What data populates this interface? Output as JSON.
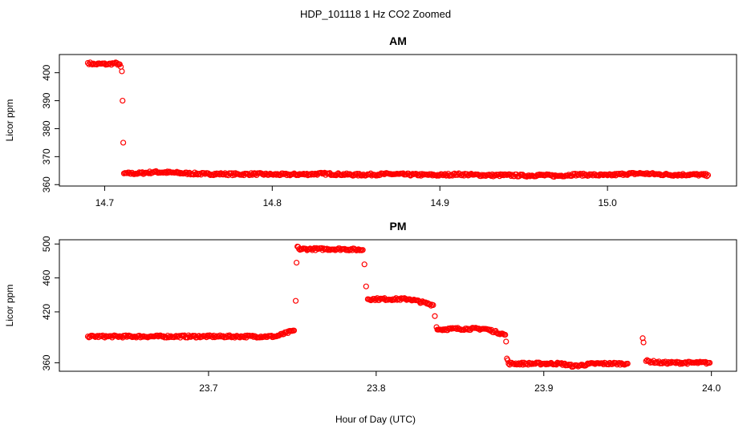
{
  "figure_title": "HDP_101118  1 Hz CO2 Zoomed",
  "xlabel": "Hour of Day (UTC)",
  "colors": {
    "points": "#ff0000",
    "axes": "#000000",
    "background": "#ffffff"
  },
  "chart_data": [
    {
      "type": "scatter",
      "title": "AM",
      "xlabel": "",
      "ylabel": "Licor ppm",
      "xlim": [
        14.673,
        15.077
      ],
      "ylim": [
        359.5,
        406.5
      ],
      "xticks": [
        "14.7",
        "14.8",
        "14.9",
        "15.0"
      ],
      "yticks": [
        "360",
        "370",
        "380",
        "390",
        "400"
      ],
      "grid": false,
      "marker": "open-circle",
      "series": [
        {
          "x": [
            14.69,
            14.694,
            14.698,
            14.702,
            14.706,
            14.709,
            14.7103,
            14.7107,
            14.7111,
            14.7115,
            14.72,
            14.73,
            14.74,
            14.75,
            14.76,
            14.77,
            14.78,
            14.79,
            14.8,
            14.81,
            14.82,
            14.83,
            14.84,
            14.85,
            14.86,
            14.87,
            14.88,
            14.89,
            14.9,
            14.91,
            14.92,
            14.93,
            14.94,
            14.95,
            14.96,
            14.97,
            14.98,
            14.99,
            15.0,
            15.01,
            15.02,
            15.03,
            15.04,
            15.05,
            15.06
          ],
          "y": [
            403.5,
            403.0,
            403.2,
            403.0,
            403.4,
            403.0,
            400.5,
            390.0,
            375.0,
            364.0,
            364.0,
            364.5,
            364.3,
            364.0,
            363.8,
            363.8,
            363.7,
            363.8,
            363.6,
            363.6,
            363.7,
            363.9,
            363.7,
            363.5,
            363.6,
            363.8,
            363.6,
            363.5,
            363.4,
            363.7,
            363.5,
            363.3,
            363.4,
            363.2,
            363.4,
            363.1,
            363.6,
            363.5,
            363.3,
            363.8,
            364.0,
            363.7,
            363.5,
            363.6,
            363.4
          ]
        }
      ]
    },
    {
      "type": "scatter",
      "title": "PM",
      "xlabel": "Hour of Day (UTC)",
      "ylabel": "Licor ppm",
      "xlim": [
        23.611,
        24.015
      ],
      "ylim": [
        350,
        505
      ],
      "xticks": [
        "23.7",
        "23.8",
        "23.9",
        "24.0"
      ],
      "yticks": [
        "360",
        "420",
        "460",
        "500"
      ],
      "grid": false,
      "marker": "open-circle",
      "series": [
        {
          "x": [
            23.628,
            23.64,
            23.66,
            23.68,
            23.7,
            23.72,
            23.74,
            23.751,
            23.752,
            23.7525,
            23.753,
            23.754,
            23.76,
            23.77,
            23.78,
            23.792,
            23.793,
            23.794,
            23.795,
            23.8,
            23.81,
            23.82,
            23.834,
            23.835,
            23.836,
            23.837,
            23.845,
            23.855,
            23.865,
            23.877,
            23.8775,
            23.878,
            23.879,
            23.89,
            23.9,
            23.91,
            23.918,
            23.93,
            23.94,
            23.95,
            23.959,
            23.9595,
            23.961,
            23.97,
            23.98,
            23.99,
            23.999
          ],
          "y": [
            391,
            391,
            391,
            391,
            391,
            391,
            391,
            398,
            433,
            478,
            497,
            494,
            494,
            494,
            494,
            493,
            476,
            450,
            435,
            435,
            435,
            435,
            428,
            415,
            402,
            399,
            400,
            400,
            400,
            393,
            385,
            365,
            359,
            359,
            359,
            359,
            356,
            359,
            359,
            359,
            389,
            384,
            362,
            360,
            360,
            360,
            360
          ]
        }
      ]
    }
  ]
}
